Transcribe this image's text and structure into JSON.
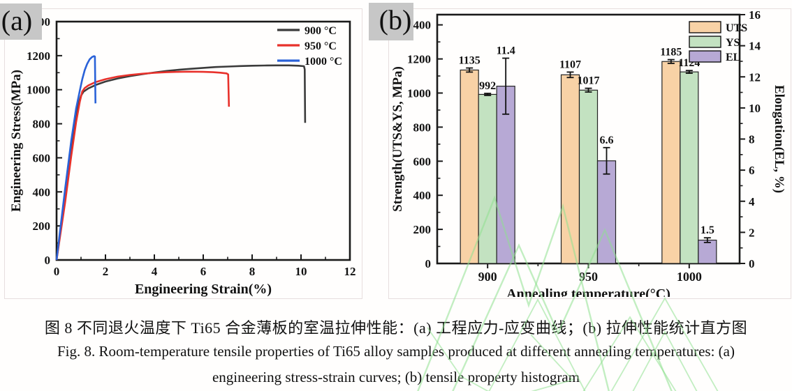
{
  "panel_a_label": "(a)",
  "panel_b_label": "(b)",
  "caption": {
    "zh": "图 8 不同退火温度下 Ti65 合金薄板的室温拉伸性能：(a) 工程应力-应变曲线；(b) 拉伸性能统计直方图",
    "en_line1": "Fig. 8. Room-temperature tensile properties of Ti65 alloy samples produced at different annealing temperatures: (a)",
    "en_line2": "engineering stress-strain curves; (b) tensile property histogram"
  },
  "watermark_color": "#8fe08f",
  "chart_data": [
    {
      "id": "stress-strain-curves",
      "type": "line",
      "xlabel": "Engineering Strain(%)",
      "ylabel": "Engineering Stress(MPa)",
      "xlim": [
        0,
        12
      ],
      "ylim": [
        0,
        1400
      ],
      "xticks": [
        0,
        2,
        4,
        6,
        8,
        10,
        12
      ],
      "yticks": [
        0,
        200,
        400,
        600,
        800,
        1000,
        1200,
        1400
      ],
      "x_minor_step": 1,
      "y_minor_step": 100,
      "grid": false,
      "legend_position": "top-right-inside",
      "series": [
        {
          "name": "900 °C",
          "color": "#3b3b3b",
          "points": [
            [
              0,
              0
            ],
            [
              0.35,
              380
            ],
            [
              0.6,
              650
            ],
            [
              0.78,
              830
            ],
            [
              0.9,
              920
            ],
            [
              1.0,
              965
            ],
            [
              1.1,
              988
            ],
            [
              1.3,
              1008
            ],
            [
              1.6,
              1028
            ],
            [
              2.0,
              1048
            ],
            [
              2.5,
              1066
            ],
            [
              3.0,
              1080
            ],
            [
              3.5,
              1091
            ],
            [
              4.0,
              1101
            ],
            [
              4.5,
              1110
            ],
            [
              5.0,
              1117
            ],
            [
              5.5,
              1123
            ],
            [
              6.0,
              1128
            ],
            [
              6.5,
              1133
            ],
            [
              7.0,
              1136
            ],
            [
              7.5,
              1139
            ],
            [
              8.0,
              1141
            ],
            [
              8.5,
              1142
            ],
            [
              9.0,
              1143
            ],
            [
              9.5,
              1143
            ],
            [
              9.9,
              1141
            ],
            [
              10.12,
              1138
            ],
            [
              10.15,
              1120
            ],
            [
              10.17,
              805
            ]
          ]
        },
        {
          "name": "950 °C",
          "color": "#e8312b",
          "points": [
            [
              0,
              0
            ],
            [
              0.35,
              340
            ],
            [
              0.6,
              610
            ],
            [
              0.8,
              810
            ],
            [
              0.95,
              930
            ],
            [
              1.05,
              990
            ],
            [
              1.15,
              1010
            ],
            [
              1.3,
              1025
            ],
            [
              1.6,
              1045
            ],
            [
              2.0,
              1062
            ],
            [
              2.5,
              1077
            ],
            [
              3.0,
              1087
            ],
            [
              3.5,
              1094
            ],
            [
              4.0,
              1099
            ],
            [
              4.5,
              1103
            ],
            [
              5.0,
              1105
            ],
            [
              5.5,
              1106
            ],
            [
              6.0,
              1105
            ],
            [
              6.4,
              1103
            ],
            [
              6.7,
              1100
            ],
            [
              6.95,
              1096
            ],
            [
              7.02,
              1090
            ],
            [
              7.05,
              900
            ]
          ]
        },
        {
          "name": "1000 °C",
          "color": "#2a62d8",
          "points": [
            [
              0,
              0
            ],
            [
              0.35,
              420
            ],
            [
              0.6,
              700
            ],
            [
              0.8,
              890
            ],
            [
              0.95,
              995
            ],
            [
              1.05,
              1062
            ],
            [
              1.15,
              1115
            ],
            [
              1.25,
              1152
            ],
            [
              1.35,
              1178
            ],
            [
              1.45,
              1192
            ],
            [
              1.53,
              1197
            ],
            [
              1.57,
              1195
            ],
            [
              1.59,
              920
            ]
          ]
        }
      ]
    },
    {
      "id": "tensile-property-histogram",
      "type": "bar",
      "xlabel": "Annealing temperature(°C)",
      "ylabel_left": "Strength(UTS&YS, MPa)",
      "ylabel_right": "Elongation(EL, %)",
      "categories": [
        "900",
        "950",
        "1000"
      ],
      "left_ylim": [
        0,
        1460
      ],
      "left_ticks": [
        0,
        200,
        400,
        600,
        800,
        1000,
        1200,
        1400
      ],
      "left_minor_step": 100,
      "right_ylim": [
        0,
        16
      ],
      "right_ticks": [
        0,
        2,
        4,
        6,
        8,
        10,
        12,
        14,
        16
      ],
      "right_minor_step": 1,
      "grid": false,
      "legend_position": "top-right-inside",
      "series": [
        {
          "name": "UTS",
          "axis": "left",
          "color": "#f8d2a6",
          "values": [
            1135,
            1107,
            1185
          ],
          "errors": [
            12,
            16,
            11
          ],
          "labels": [
            "1135",
            "1107",
            "1185"
          ]
        },
        {
          "name": "YS",
          "axis": "left",
          "color": "#c3e2c1",
          "values": [
            992,
            1017,
            1124
          ],
          "errors": [
            6,
            11,
            8
          ],
          "labels": [
            "992",
            "1017",
            "1124"
          ]
        },
        {
          "name": "EL",
          "axis": "right",
          "color": "#b7a9d5",
          "values": [
            11.4,
            6.6,
            1.5
          ],
          "errors": [
            1.8,
            0.85,
            0.15
          ],
          "labels": [
            "11.4",
            "6.6",
            "1.5"
          ]
        }
      ]
    }
  ]
}
